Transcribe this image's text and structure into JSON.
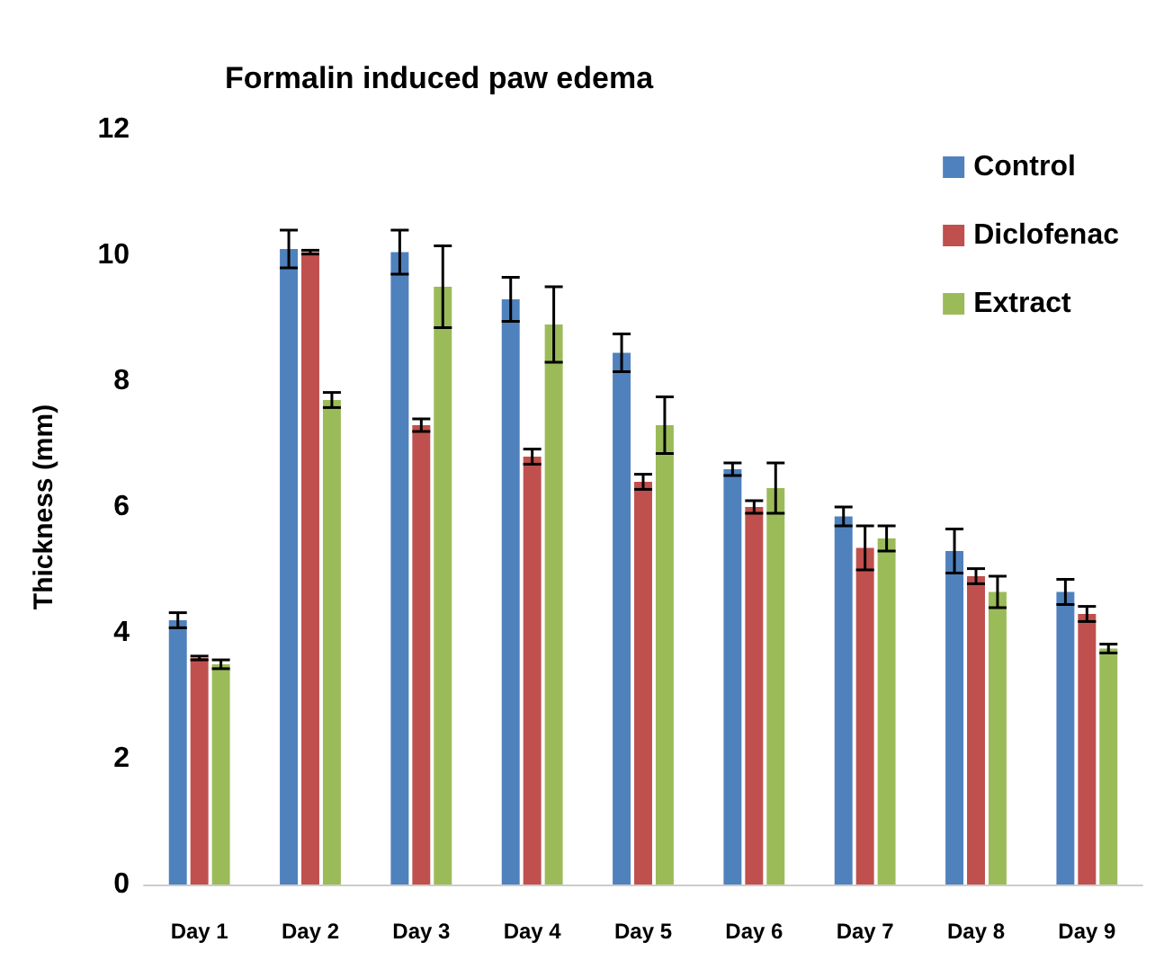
{
  "chart_data": {
    "type": "bar",
    "title": "Formalin induced paw edema",
    "ylabel": "Thickness (mm)",
    "categories": [
      "Day 1",
      "Day 2",
      "Day 3",
      "Day 4",
      "Day 5",
      "Day 6",
      "Day 7",
      "Day 8",
      "Day 9"
    ],
    "series": [
      {
        "name": "Control",
        "color": "#4f81bd",
        "values": [
          4.2,
          10.1,
          10.05,
          9.3,
          8.45,
          6.6,
          5.85,
          5.3,
          4.65
        ],
        "errors": [
          0.12,
          0.3,
          0.35,
          0.35,
          0.3,
          0.1,
          0.15,
          0.35,
          0.2
        ]
      },
      {
        "name": "Diclofenac",
        "color": "#c0504d",
        "values": [
          3.6,
          10.05,
          7.3,
          6.8,
          6.4,
          6.0,
          5.35,
          4.9,
          4.3
        ],
        "errors": [
          0.03,
          0.03,
          0.1,
          0.12,
          0.12,
          0.1,
          0.35,
          0.12,
          0.12
        ]
      },
      {
        "name": "Extract",
        "color": "#9bbb59",
        "values": [
          3.5,
          7.7,
          9.5,
          8.9,
          7.3,
          6.3,
          5.5,
          4.65,
          3.75
        ],
        "errors": [
          0.07,
          0.12,
          0.65,
          0.6,
          0.45,
          0.4,
          0.2,
          0.25,
          0.07
        ]
      }
    ],
    "ylim": [
      0,
      12
    ],
    "yticks": [
      0,
      2,
      4,
      6,
      8,
      10,
      12
    ],
    "grid": false,
    "legend": "top right"
  }
}
